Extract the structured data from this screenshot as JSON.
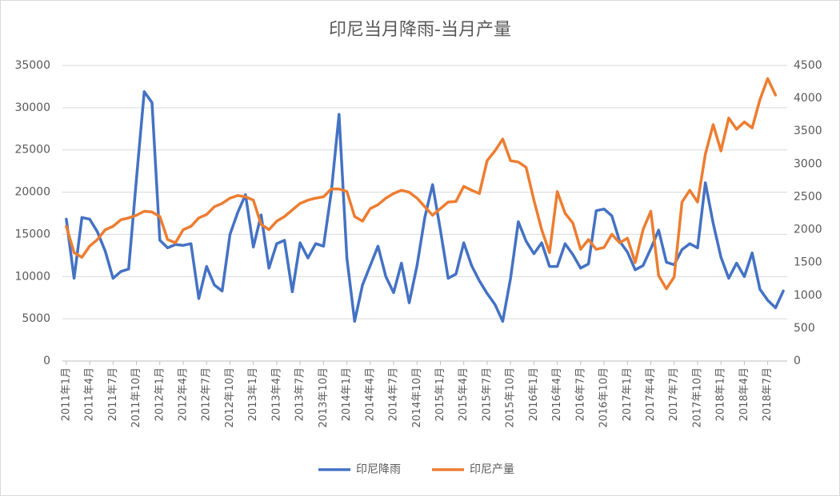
{
  "chart_data": {
    "type": "line",
    "title": "印尼当月降雨-当月产量",
    "categories": [
      "2011年1月",
      null,
      null,
      "2011年4月",
      null,
      null,
      "2011年7月",
      null,
      null,
      "2011年10月",
      null,
      null,
      "2012年1月",
      null,
      null,
      "2012年4月",
      null,
      null,
      "2012年7月",
      null,
      null,
      "2012年10月",
      null,
      null,
      "2013年1月",
      null,
      null,
      "2013年4月",
      null,
      null,
      "2013年7月",
      null,
      null,
      "2013年10月",
      null,
      null,
      "2014年1月",
      null,
      null,
      "2014年4月",
      null,
      null,
      "2014年7月",
      null,
      null,
      "2014年10月",
      null,
      null,
      "2015年1月",
      null,
      null,
      "2015年4月",
      null,
      null,
      "2015年7月",
      null,
      null,
      "2015年10月",
      null,
      null,
      "2016年1月",
      null,
      null,
      "2016年4月",
      null,
      null,
      "2016年7月",
      null,
      null,
      "2016年10月",
      null,
      null,
      "2017年1月",
      null,
      null,
      "2017年4月",
      null,
      null,
      "2017年7月",
      null,
      null,
      "2017年10月",
      null,
      null,
      "2018年1月",
      null,
      null,
      "2018年4月",
      null,
      null,
      "2018年7月",
      null,
      null
    ],
    "series": [
      {
        "name": "印尼降雨",
        "color": "#4472c4",
        "axis": "y",
        "values": [
          16800,
          9800,
          17000,
          16800,
          15300,
          13000,
          9800,
          10600,
          10900,
          21500,
          31900,
          30600,
          14300,
          13400,
          13800,
          13700,
          13900,
          7400,
          11200,
          9000,
          8300,
          15000,
          17600,
          19700,
          13500,
          17300,
          11000,
          13900,
          14300,
          8200,
          14000,
          12200,
          13900,
          13600,
          20000,
          29200,
          12200,
          4700,
          9000,
          11300,
          13600,
          10000,
          8100,
          11600,
          6900,
          11300,
          17000,
          20900,
          15500,
          9800,
          10300,
          14000,
          11300,
          9500,
          8000,
          6700,
          4700,
          9800,
          16500,
          14200,
          12700,
          14000,
          11200,
          11200,
          13900,
          12600,
          11000,
          11500,
          17800,
          18000,
          17200,
          14200,
          12900,
          10800,
          11300,
          13300,
          15500,
          11700,
          11400,
          13200,
          13900,
          13400,
          21100,
          16300,
          12300,
          9800,
          11600,
          10000,
          12800,
          8500,
          7200,
          6300,
          8300
        ]
      },
      {
        "name": "印尼产量",
        "color": "#ed7d31",
        "axis": "y2",
        "values": [
          2050,
          1650,
          1580,
          1750,
          1850,
          2000,
          2050,
          2150,
          2180,
          2220,
          2280,
          2270,
          2200,
          1850,
          1800,
          2000,
          2050,
          2180,
          2230,
          2350,
          2400,
          2480,
          2520,
          2500,
          2450,
          2080,
          2000,
          2130,
          2200,
          2300,
          2400,
          2450,
          2480,
          2500,
          2620,
          2620,
          2580,
          2200,
          2130,
          2320,
          2380,
          2480,
          2550,
          2600,
          2570,
          2480,
          2350,
          2220,
          2320,
          2420,
          2430,
          2660,
          2600,
          2550,
          3050,
          3200,
          3380,
          3050,
          3030,
          2950,
          2450,
          2000,
          1650,
          2580,
          2250,
          2100,
          1700,
          1850,
          1700,
          1730,
          1930,
          1800,
          1870,
          1500,
          2000,
          2280,
          1300,
          1100,
          1280,
          2420,
          2600,
          2420,
          3150,
          3600,
          3200,
          3700,
          3530,
          3640,
          3550,
          3980,
          4300,
          4050,
          null
        ]
      }
    ],
    "ylim": [
      0,
      35000
    ],
    "yticks": [
      0,
      5000,
      10000,
      15000,
      20000,
      25000,
      30000,
      35000
    ],
    "y2lim": [
      0,
      4500
    ],
    "y2ticks": [
      0,
      500,
      1000,
      1500,
      2000,
      2500,
      3000,
      3500,
      4000,
      4500
    ],
    "grid": true,
    "legend": "bottom"
  }
}
